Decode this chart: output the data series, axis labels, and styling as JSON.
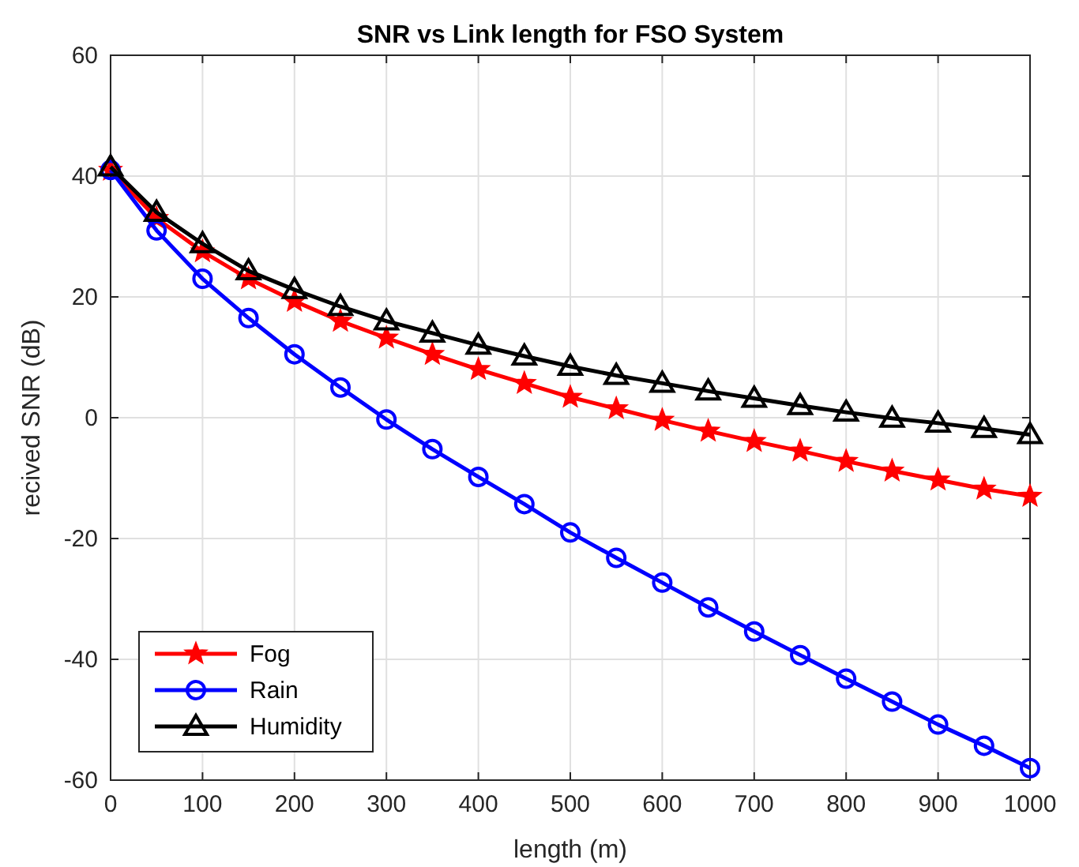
{
  "chart_data": {
    "type": "line",
    "title": "SNR vs Link length for FSO System",
    "xlabel": "length (m)",
    "ylabel": "recived SNR (dB)",
    "x": [
      0,
      50,
      100,
      150,
      200,
      250,
      300,
      350,
      400,
      450,
      500,
      550,
      600,
      650,
      700,
      750,
      800,
      850,
      900,
      950,
      1000
    ],
    "series": [
      {
        "name": "Fog",
        "color": "#ff0000",
        "marker": "star",
        "values": [
          41,
          33,
          27.5,
          23,
          19.3,
          16,
          13.2,
          10.5,
          8,
          5.7,
          3.4,
          1.5,
          -0.4,
          -2.2,
          -3.9,
          -5.5,
          -7.2,
          -8.8,
          -10.3,
          -11.8,
          -13
        ]
      },
      {
        "name": "Rain",
        "color": "#0000ff",
        "marker": "circle",
        "values": [
          41,
          31,
          23,
          16.5,
          10.5,
          5,
          -0.3,
          -5.2,
          -9.8,
          -14.3,
          -19,
          -23.2,
          -27.3,
          -31.4,
          -35.4,
          -39.3,
          -43.2,
          -47,
          -50.8,
          -54.3,
          -58
        ]
      },
      {
        "name": "Humidity",
        "color": "#000000",
        "marker": "triangle",
        "values": [
          41.5,
          34,
          28.8,
          24.3,
          21.2,
          18.4,
          16,
          14,
          12,
          10.2,
          8.5,
          7,
          5.7,
          4.4,
          3.2,
          2,
          0.9,
          -0.1,
          -0.9,
          -1.8,
          -2.8
        ]
      }
    ],
    "xlim": [
      0,
      1000
    ],
    "xticks": [
      0,
      100,
      200,
      300,
      400,
      500,
      600,
      700,
      800,
      900,
      1000
    ],
    "ylim": [
      -60,
      60
    ],
    "yticks": [
      -60,
      -40,
      -20,
      0,
      20,
      40,
      60
    ],
    "grid": true,
    "legend": "bottom left",
    "line_style": "solid"
  }
}
